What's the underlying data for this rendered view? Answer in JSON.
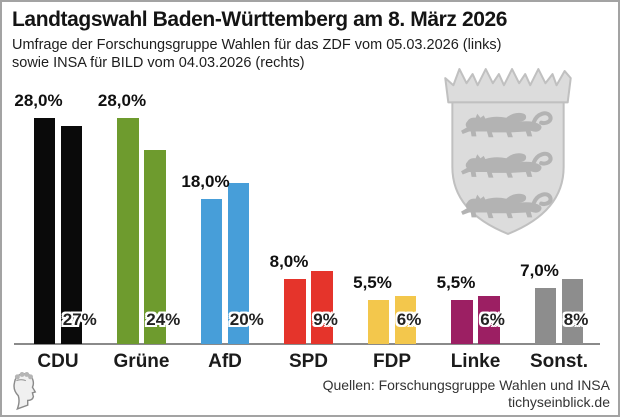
{
  "header": {
    "title": "Landtagswahl Baden-Württemberg am 8. März 2026",
    "subtitle_line1": "Umfrage der Forschungsgruppe Wahlen für das ZDF vom 05.03.2026 (links)",
    "subtitle_line2": "sowie INSA für BILD vom 04.03.2026 (rechts)"
  },
  "chart_data": {
    "type": "bar",
    "title": "Landtagswahl Baden-Württemberg am 8. März 2026",
    "categories": [
      "CDU",
      "Grüne",
      "AfD",
      "SPD",
      "FDP",
      "Linke",
      "Sonst."
    ],
    "series": [
      {
        "name": "Forschungsgruppe Wahlen / ZDF 05.03.2026 (links)",
        "values": [
          28.0,
          28.0,
          18.0,
          8.0,
          5.5,
          5.5,
          7.0
        ],
        "labels": [
          "28,0%",
          "28,0%",
          "18,0%",
          "8,0%",
          "5,5%",
          "5,5%",
          "7,0%"
        ]
      },
      {
        "name": "INSA / BILD 04.03.2026 (rechts)",
        "values": [
          27,
          24,
          20,
          9,
          6,
          6,
          8
        ],
        "labels": [
          "27%",
          "24%",
          "20%",
          "9%",
          "6%",
          "6%",
          "8%"
        ]
      }
    ],
    "bar_colors": [
      "#0a0a0a",
      "#6e9b2e",
      "#479ed9",
      "#e5342b",
      "#f3c74c",
      "#9c1f63",
      "#8d8d8d"
    ],
    "unit": "%",
    "ylim": [
      0,
      31
    ],
    "grid": false,
    "legend_position": "none"
  },
  "footer": {
    "source_line1": "Quellen: Forschungsgruppe Wahlen und INSA",
    "source_line2": "tichyseinblick.de"
  },
  "decorations": {
    "coat_of_arms_icon": "baden-wuerttemberg-shield",
    "logo_icon": "tichys-einblick-head",
    "shield_fill": "#dcdcdc",
    "shield_stroke": "#c0c0c0",
    "lion_fill": "#b3b3b3",
    "axis_color": "#8a8a8a"
  }
}
